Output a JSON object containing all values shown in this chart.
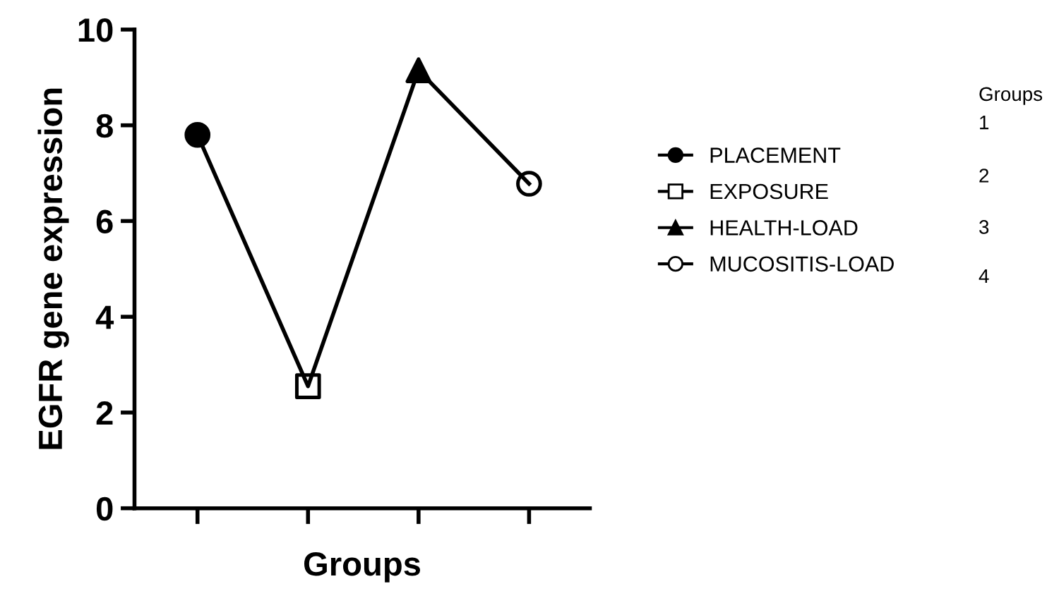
{
  "chart_data": {
    "type": "line",
    "xlabel": "Groups",
    "ylabel": "EGFR gene expression",
    "categories": [
      null,
      null,
      null,
      null
    ],
    "ylim": [
      0,
      10
    ],
    "yticks": [
      0,
      2,
      4,
      6,
      8,
      10
    ],
    "tick_labels": "y",
    "grid": false,
    "legend": "right",
    "series": [
      {
        "color": "#000000",
        "values": [
          7.8,
          2.55,
          9.15,
          6.78
        ],
        "marker": "none",
        "line_style": "solid"
      },
      {
        "name": "PLACEMENT",
        "type": "scatter",
        "color": "#000000",
        "marker": "circle",
        "colors": [
          "#000000",
          "#000000",
          "#000000",
          "#000000"
        ],
        "values": [
          7.8,
          null,
          null,
          null
        ]
      },
      {
        "name": "EXPOSURE",
        "type": "scatter",
        "color": "#000000",
        "marker": "square",
        "colors": [
          "#ffffff",
          "#ffffff",
          "#ffffff",
          "#ffffff"
        ],
        "values": [
          null,
          2.55,
          null,
          null
        ]
      },
      {
        "name": "HEALTH-LOAD",
        "type": "scatter",
        "color": "#000000",
        "marker": "triangle",
        "colors": [
          "#000000",
          "#000000",
          "#000000",
          "#000000"
        ],
        "values": [
          null,
          null,
          9.15,
          null
        ]
      },
      {
        "name": "MUCOSITIS-LOAD",
        "type": "scatter",
        "color": "#000000",
        "marker": "circle",
        "colors": [
          "#ffffff",
          "#ffffff",
          "#ffffff",
          "#ffffff"
        ],
        "values": [
          null,
          null,
          null,
          6.78
        ]
      }
    ],
    "annotations": [
      "Groups",
      "1",
      "2",
      "3",
      "4"
    ]
  }
}
